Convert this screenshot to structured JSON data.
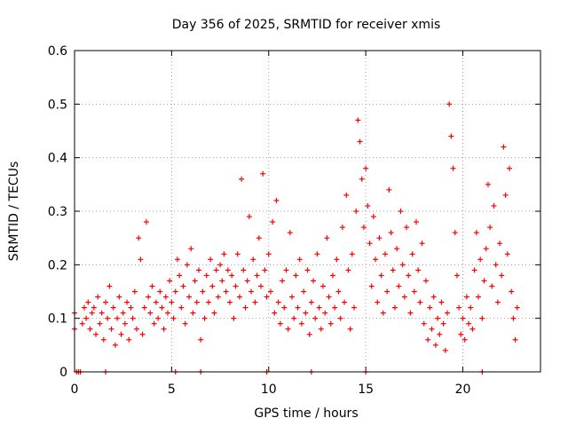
{
  "chart_data": {
    "type": "scatter",
    "title": "Day 356 of 2025, SRMTID for receiver xmis",
    "xlabel": "GPS time / hours",
    "ylabel": "SRMTID / TECUs",
    "xlim": [
      0,
      24
    ],
    "ylim": [
      0,
      0.6
    ],
    "xticks": [
      0,
      5,
      10,
      15,
      20
    ],
    "yticks": [
      0,
      0.1,
      0.2,
      0.3,
      0.4,
      0.5,
      0.6
    ],
    "xtick_labels": [
      "0",
      "5",
      "10",
      "15",
      "20"
    ],
    "ytick_labels": [
      "0",
      "0.1",
      "0.2",
      "0.3",
      "0.4",
      "0.5",
      "0.6"
    ],
    "grid": true,
    "marker": "+",
    "color": "#ff0000",
    "series": [
      {
        "name": "SRMTID",
        "points": [
          [
            0.0,
            0.11
          ],
          [
            0.0,
            0.08
          ],
          [
            0.1,
            0.0
          ],
          [
            0.2,
            0.0
          ],
          [
            0.3,
            0.0
          ],
          [
            0.4,
            0.09
          ],
          [
            0.5,
            0.12
          ],
          [
            0.6,
            0.1
          ],
          [
            0.7,
            0.13
          ],
          [
            0.8,
            0.08
          ],
          [
            0.9,
            0.11
          ],
          [
            1.0,
            0.12
          ],
          [
            1.1,
            0.07
          ],
          [
            1.2,
            0.14
          ],
          [
            1.3,
            0.09
          ],
          [
            1.4,
            0.11
          ],
          [
            1.5,
            0.06
          ],
          [
            1.6,
            0.13
          ],
          [
            1.7,
            0.1
          ],
          [
            1.8,
            0.16
          ],
          [
            1.9,
            0.08
          ],
          [
            2.0,
            0.12
          ],
          [
            2.1,
            0.05
          ],
          [
            2.2,
            0.1
          ],
          [
            2.3,
            0.14
          ],
          [
            2.4,
            0.07
          ],
          [
            2.5,
            0.11
          ],
          [
            2.6,
            0.09
          ],
          [
            2.7,
            0.13
          ],
          [
            2.8,
            0.06
          ],
          [
            2.9,
            0.12
          ],
          [
            3.0,
            0.1
          ],
          [
            3.1,
            0.15
          ],
          [
            3.2,
            0.08
          ],
          [
            3.3,
            0.25
          ],
          [
            3.4,
            0.21
          ],
          [
            3.5,
            0.07
          ],
          [
            3.6,
            0.12
          ],
          [
            3.7,
            0.28
          ],
          [
            3.8,
            0.14
          ],
          [
            3.9,
            0.11
          ],
          [
            4.0,
            0.16
          ],
          [
            4.1,
            0.09
          ],
          [
            4.2,
            0.13
          ],
          [
            4.3,
            0.1
          ],
          [
            4.4,
            0.15
          ],
          [
            4.5,
            0.12
          ],
          [
            4.6,
            0.08
          ],
          [
            4.7,
            0.14
          ],
          [
            4.8,
            0.11
          ],
          [
            4.9,
            0.17
          ],
          [
            5.0,
            0.13
          ],
          [
            5.1,
            0.1
          ],
          [
            5.2,
            0.15
          ],
          [
            5.3,
            0.21
          ],
          [
            5.4,
            0.18
          ],
          [
            5.5,
            0.12
          ],
          [
            5.6,
            0.16
          ],
          [
            5.7,
            0.09
          ],
          [
            5.8,
            0.2
          ],
          [
            5.9,
            0.14
          ],
          [
            6.0,
            0.23
          ],
          [
            6.1,
            0.11
          ],
          [
            6.2,
            0.17
          ],
          [
            6.3,
            0.13
          ],
          [
            6.4,
            0.19
          ],
          [
            6.5,
            0.06
          ],
          [
            6.6,
            0.15
          ],
          [
            6.7,
            0.1
          ],
          [
            6.8,
            0.18
          ],
          [
            6.9,
            0.13
          ],
          [
            7.0,
            0.21
          ],
          [
            7.1,
            0.16
          ],
          [
            7.2,
            0.11
          ],
          [
            7.3,
            0.19
          ],
          [
            7.4,
            0.14
          ],
          [
            7.5,
            0.2
          ],
          [
            7.6,
            0.17
          ],
          [
            7.7,
            0.22
          ],
          [
            7.8,
            0.15
          ],
          [
            7.9,
            0.19
          ],
          [
            8.0,
            0.13
          ],
          [
            8.1,
            0.18
          ],
          [
            8.2,
            0.1
          ],
          [
            8.3,
            0.16
          ],
          [
            8.4,
            0.22
          ],
          [
            8.5,
            0.14
          ],
          [
            8.6,
            0.36
          ],
          [
            8.7,
            0.19
          ],
          [
            8.8,
            0.12
          ],
          [
            8.9,
            0.17
          ],
          [
            9.0,
            0.29
          ],
          [
            9.1,
            0.15
          ],
          [
            9.2,
            0.21
          ],
          [
            9.3,
            0.13
          ],
          [
            9.4,
            0.18
          ],
          [
            9.5,
            0.25
          ],
          [
            9.6,
            0.16
          ],
          [
            9.7,
            0.37
          ],
          [
            9.8,
            0.19
          ],
          [
            9.9,
            0.14
          ],
          [
            10.0,
            0.22
          ],
          [
            10.1,
            0.15
          ],
          [
            10.2,
            0.28
          ],
          [
            10.3,
            0.11
          ],
          [
            10.4,
            0.32
          ],
          [
            10.5,
            0.13
          ],
          [
            10.6,
            0.09
          ],
          [
            10.7,
            0.17
          ],
          [
            10.8,
            0.12
          ],
          [
            10.9,
            0.19
          ],
          [
            11.0,
            0.08
          ],
          [
            11.1,
            0.26
          ],
          [
            11.2,
            0.14
          ],
          [
            11.3,
            0.1
          ],
          [
            11.4,
            0.18
          ],
          [
            11.5,
            0.12
          ],
          [
            11.6,
            0.21
          ],
          [
            11.7,
            0.09
          ],
          [
            11.8,
            0.15
          ],
          [
            11.9,
            0.11
          ],
          [
            12.0,
            0.19
          ],
          [
            12.1,
            0.07
          ],
          [
            12.2,
            0.13
          ],
          [
            12.3,
            0.17
          ],
          [
            12.4,
            0.1
          ],
          [
            12.5,
            0.22
          ],
          [
            12.6,
            0.12
          ],
          [
            12.7,
            0.08
          ],
          [
            12.8,
            0.16
          ],
          [
            12.9,
            0.11
          ],
          [
            13.0,
            0.25
          ],
          [
            13.1,
            0.14
          ],
          [
            13.2,
            0.09
          ],
          [
            13.3,
            0.18
          ],
          [
            13.4,
            0.12
          ],
          [
            13.5,
            0.21
          ],
          [
            13.6,
            0.15
          ],
          [
            13.7,
            0.1
          ],
          [
            13.8,
            0.27
          ],
          [
            13.9,
            0.13
          ],
          [
            14.0,
            0.33
          ],
          [
            14.1,
            0.19
          ],
          [
            14.2,
            0.08
          ],
          [
            14.3,
            0.22
          ],
          [
            14.4,
            0.12
          ],
          [
            14.5,
            0.3
          ],
          [
            14.6,
            0.47
          ],
          [
            14.7,
            0.43
          ],
          [
            14.8,
            0.36
          ],
          [
            14.9,
            0.27
          ],
          [
            15.0,
            0.38
          ],
          [
            15.1,
            0.31
          ],
          [
            15.2,
            0.24
          ],
          [
            15.3,
            0.16
          ],
          [
            15.4,
            0.29
          ],
          [
            15.5,
            0.21
          ],
          [
            15.6,
            0.13
          ],
          [
            15.7,
            0.25
          ],
          [
            15.8,
            0.18
          ],
          [
            15.9,
            0.11
          ],
          [
            16.0,
            0.22
          ],
          [
            16.1,
            0.15
          ],
          [
            16.2,
            0.34
          ],
          [
            16.3,
            0.26
          ],
          [
            16.4,
            0.19
          ],
          [
            16.5,
            0.12
          ],
          [
            16.6,
            0.23
          ],
          [
            16.7,
            0.16
          ],
          [
            16.8,
            0.3
          ],
          [
            16.9,
            0.2
          ],
          [
            17.0,
            0.14
          ],
          [
            17.1,
            0.27
          ],
          [
            17.2,
            0.18
          ],
          [
            17.3,
            0.11
          ],
          [
            17.4,
            0.22
          ],
          [
            17.5,
            0.15
          ],
          [
            17.6,
            0.28
          ],
          [
            17.7,
            0.19
          ],
          [
            17.8,
            0.13
          ],
          [
            17.9,
            0.24
          ],
          [
            18.0,
            0.09
          ],
          [
            18.1,
            0.17
          ],
          [
            18.2,
            0.06
          ],
          [
            18.3,
            0.12
          ],
          [
            18.4,
            0.08
          ],
          [
            18.5,
            0.14
          ],
          [
            18.6,
            0.05
          ],
          [
            18.7,
            0.1
          ],
          [
            18.8,
            0.07
          ],
          [
            18.9,
            0.13
          ],
          [
            19.0,
            0.09
          ],
          [
            19.1,
            0.04
          ],
          [
            19.2,
            0.11
          ],
          [
            19.3,
            0.5
          ],
          [
            19.4,
            0.44
          ],
          [
            19.5,
            0.38
          ],
          [
            19.6,
            0.26
          ],
          [
            19.7,
            0.18
          ],
          [
            19.8,
            0.12
          ],
          [
            19.9,
            0.07
          ],
          [
            20.0,
            0.1
          ],
          [
            20.1,
            0.06
          ],
          [
            20.2,
            0.14
          ],
          [
            20.3,
            0.09
          ],
          [
            20.4,
            0.12
          ],
          [
            20.5,
            0.08
          ],
          [
            20.6,
            0.19
          ],
          [
            20.7,
            0.26
          ],
          [
            20.8,
            0.14
          ],
          [
            20.9,
            0.21
          ],
          [
            21.0,
            0.1
          ],
          [
            21.1,
            0.17
          ],
          [
            21.2,
            0.23
          ],
          [
            21.3,
            0.35
          ],
          [
            21.4,
            0.27
          ],
          [
            21.5,
            0.16
          ],
          [
            21.6,
            0.31
          ],
          [
            21.7,
            0.2
          ],
          [
            21.8,
            0.13
          ],
          [
            21.9,
            0.24
          ],
          [
            22.0,
            0.18
          ],
          [
            22.1,
            0.42
          ],
          [
            22.2,
            0.33
          ],
          [
            22.3,
            0.22
          ],
          [
            22.4,
            0.38
          ],
          [
            22.5,
            0.15
          ],
          [
            22.6,
            0.1
          ],
          [
            22.7,
            0.06
          ],
          [
            22.8,
            0.12
          ],
          [
            5.2,
            0.0
          ],
          [
            6.5,
            0.0
          ],
          [
            12.2,
            0.0
          ],
          [
            15.0,
            0.0
          ],
          [
            21.0,
            0.0
          ],
          [
            1.6,
            0.0
          ],
          [
            9.9,
            0.0
          ]
        ]
      }
    ]
  }
}
